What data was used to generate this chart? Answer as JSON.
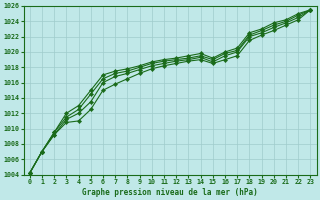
{
  "title": "Graphe pression niveau de la mer (hPa)",
  "xlim": [
    -0.5,
    23.5
  ],
  "ylim": [
    1004,
    1026
  ],
  "xticks": [
    0,
    1,
    2,
    3,
    4,
    5,
    6,
    7,
    8,
    9,
    10,
    11,
    12,
    13,
    14,
    15,
    16,
    17,
    18,
    19,
    20,
    21,
    22,
    23
  ],
  "yticks": [
    1004,
    1006,
    1008,
    1010,
    1012,
    1014,
    1016,
    1018,
    1020,
    1022,
    1024,
    1026
  ],
  "background_color": "#c0e8e8",
  "grid_color": "#a0cccc",
  "line_color": "#1a6b1a",
  "series": [
    [
      1004.2,
      1007.0,
      1009.2,
      1010.8,
      1011.0,
      1012.5,
      1015.0,
      1015.8,
      1016.5,
      1017.2,
      1017.8,
      1018.2,
      1018.5,
      1018.8,
      1019.0,
      1018.5,
      1019.0,
      1019.5,
      1021.5,
      1022.2,
      1022.8,
      1023.5,
      1024.2,
      1025.5
    ],
    [
      1004.2,
      1007.0,
      1009.5,
      1011.5,
      1012.5,
      1014.5,
      1016.5,
      1017.2,
      1017.5,
      1018.0,
      1018.5,
      1018.8,
      1019.0,
      1019.2,
      1019.5,
      1019.0,
      1019.8,
      1020.2,
      1022.2,
      1022.8,
      1023.5,
      1024.0,
      1024.8,
      1025.5
    ],
    [
      1004.2,
      1007.0,
      1009.2,
      1011.2,
      1012.0,
      1013.5,
      1016.0,
      1016.8,
      1017.2,
      1017.7,
      1018.2,
      1018.5,
      1018.8,
      1019.0,
      1019.3,
      1018.7,
      1019.5,
      1020.0,
      1022.0,
      1022.5,
      1023.2,
      1023.8,
      1024.5,
      1025.5
    ],
    [
      1004.2,
      1007.0,
      1009.5,
      1012.0,
      1013.0,
      1015.0,
      1017.0,
      1017.5,
      1017.8,
      1018.2,
      1018.7,
      1019.0,
      1019.2,
      1019.5,
      1019.8,
      1019.2,
      1020.0,
      1020.5,
      1022.5,
      1023.0,
      1023.8,
      1024.2,
      1025.0,
      1025.5
    ]
  ],
  "xlabel_fontsize": 5.5,
  "tick_fontsize": 4.8,
  "linewidth": 0.8,
  "markersize": 2.2
}
